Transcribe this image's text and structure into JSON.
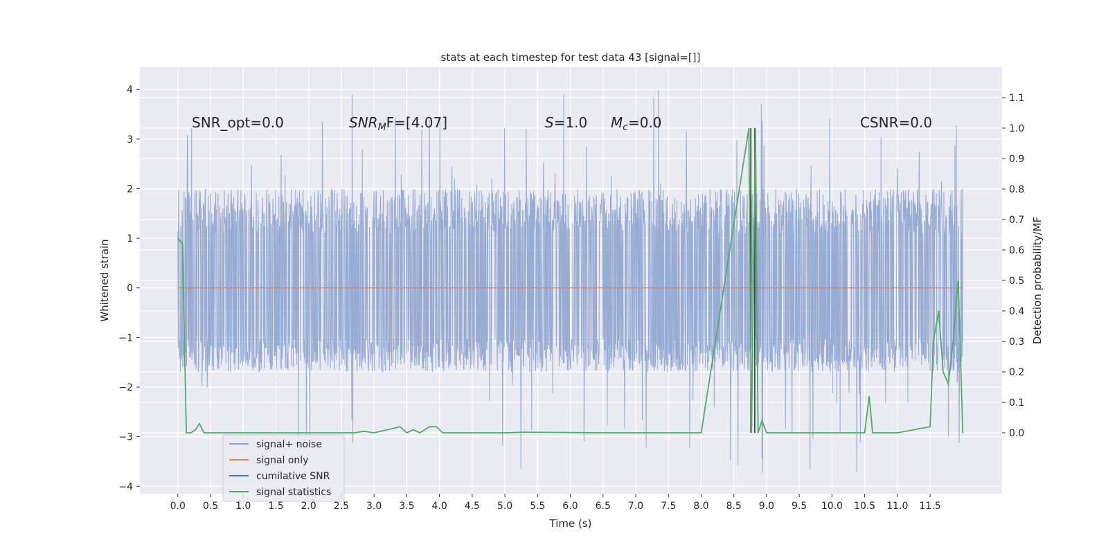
{
  "chart_data": {
    "type": "line",
    "title": "stats at each timestep for test data 43 [signal=[]]",
    "xlabel": "Time (s)",
    "ylabel": "Whitened strain",
    "y2label": "Detection probability/MF",
    "xlim": [
      -0.58,
      12.6
    ],
    "ylim": [
      -4.15,
      4.45
    ],
    "y2lim": [
      -0.2,
      1.2
    ],
    "xticks": [
      0.0,
      0.5,
      1.0,
      1.5,
      2.0,
      2.5,
      3.0,
      3.5,
      4.0,
      4.5,
      5.0,
      5.5,
      6.0,
      6.5,
      7.0,
      7.5,
      8.0,
      8.5,
      9.0,
      9.5,
      10.0,
      10.5,
      11.0,
      11.5
    ],
    "xtick_labels": [
      "0.0",
      "0.5",
      "1.0",
      "1.5",
      "2.0",
      "2.5",
      "3.0",
      "3.5",
      "4.0",
      "4.5",
      "5.0",
      "5.5",
      "6.0",
      "6.5",
      "7.0",
      "7.5",
      "8.0",
      "8.5",
      "9.0",
      "9.5",
      "10.0",
      "10.5",
      "11.0",
      "11.5"
    ],
    "yticks": [
      4,
      3,
      2,
      1,
      0,
      -1,
      -2,
      -3,
      -4
    ],
    "ytick_labels": [
      "4",
      "3",
      "2",
      "1",
      "0",
      "−1",
      "−2",
      "−3",
      "−4"
    ],
    "y2ticks": [
      1.1,
      1.0,
      0.9,
      0.8,
      0.7,
      0.6,
      0.5,
      0.4,
      0.3,
      0.2,
      0.1,
      0.0
    ],
    "y2tick_labels": [
      "1.1",
      "1.0",
      "0.9",
      "0.8",
      "0.7",
      "0.6",
      "0.5",
      "0.4",
      "0.3",
      "0.2",
      "0.1",
      "0.0"
    ],
    "grid": true,
    "legend_position": "lower-left",
    "annotations": {
      "snr_opt": "SNR_opt=0.0",
      "snr_mf_base": "SNR",
      "snr_mf_sub": "M",
      "snr_mf_rest": "F=[4.07]",
      "s_sym": "S",
      "s_val": "=1.0",
      "mc_sym": "M",
      "mc_sub": "c",
      "mc_val": "=0.0",
      "csnr": "CSNR=0.0"
    },
    "series": [
      {
        "name": "signal+ noise",
        "color": "#8fa5cf",
        "axis": "left",
        "envelope": {
          "x_range": [
            0.0,
            12.0
          ],
          "typical_band": [
            -1.7,
            2.0
          ],
          "peak_max": 4.1,
          "peak_min": -3.75
        }
      },
      {
        "name": "signal only",
        "color": "#dd8452",
        "axis": "left",
        "x": [
          0.0,
          12.0
        ],
        "y": [
          0.0,
          0.0
        ]
      },
      {
        "name": "cumilative SNR",
        "color": "#4c72b0",
        "axis": "left",
        "x": [],
        "y": []
      },
      {
        "name": "signal statistics",
        "color": "#55a868",
        "axis": "right",
        "x": [
          0.0,
          0.07,
          0.13,
          0.2,
          0.27,
          0.33,
          0.4,
          0.5,
          1.0,
          2.0,
          2.7,
          2.85,
          3.0,
          3.4,
          3.5,
          3.6,
          3.7,
          3.85,
          3.95,
          4.05,
          5.0,
          5.3,
          6.5,
          8.0,
          8.73,
          8.77,
          8.83,
          8.87,
          8.93,
          9.0,
          10.5,
          10.57,
          10.62,
          10.68,
          10.75,
          11.0,
          11.5,
          11.55,
          11.63,
          11.7,
          11.78,
          11.85,
          11.93,
          12.0
        ],
        "y": [
          0.64,
          0.62,
          0.0,
          0.0,
          0.01,
          0.03,
          0.0,
          0.0,
          0.0,
          0.0,
          0.0,
          0.005,
          0.0,
          0.02,
          0.0,
          0.01,
          0.0,
          0.02,
          0.02,
          0.0,
          0.0,
          0.002,
          0.0,
          0.0,
          1.0,
          0.0,
          1.0,
          0.0,
          0.04,
          0.0,
          0.0,
          0.12,
          0.0,
          0.0,
          0.0,
          0.0,
          0.02,
          0.3,
          0.4,
          0.2,
          0.16,
          0.3,
          0.5,
          0.0
        ]
      }
    ]
  }
}
